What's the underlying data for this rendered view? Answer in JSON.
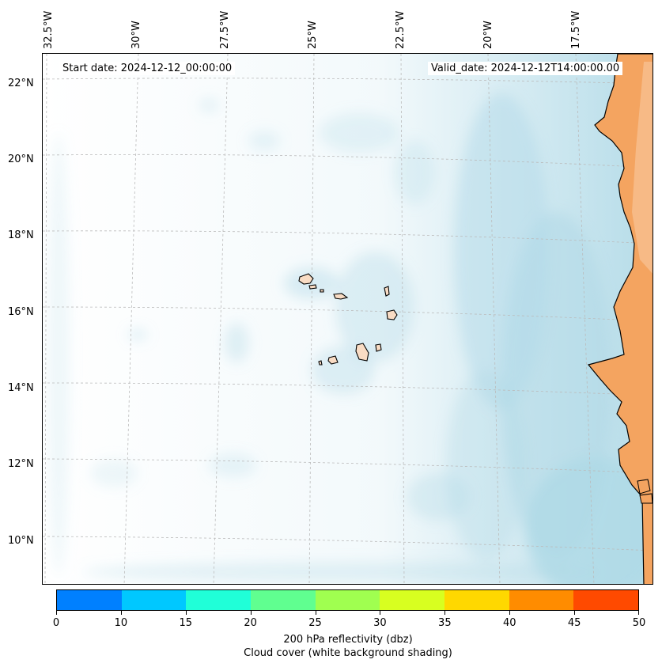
{
  "map": {
    "start_date": "Start date: 2024-12-12_00:00:00",
    "valid_date": "Valid_date: 2024-12-12T14:00:00.00",
    "lon_labels": [
      "32.5°W",
      "30°W",
      "27.5°W",
      "25°W",
      "22.5°W",
      "20°W",
      "17.5°W"
    ],
    "lat_labels": [
      "22°N",
      "20°N",
      "18°N",
      "16°N",
      "14°N",
      "12°N",
      "10°N"
    ],
    "colors": {
      "land": "#f4a460",
      "cloud": "#add8e6",
      "coastline": "#000000",
      "gridline": "#bbbbbb"
    }
  },
  "colorbar": {
    "ticks": [
      "0",
      "10",
      "15",
      "20",
      "25",
      "30",
      "35",
      "40",
      "45",
      "50"
    ],
    "colors": [
      "#0080ff",
      "#00c8ff",
      "#20ffd8",
      "#60ff90",
      "#a0ff50",
      "#d8ff20",
      "#ffd800",
      "#ff8c00",
      "#ff4a00"
    ],
    "label_line1": "200 hPa reflectivity (dbz)",
    "label_line2": "Cloud cover (white background shading)"
  }
}
